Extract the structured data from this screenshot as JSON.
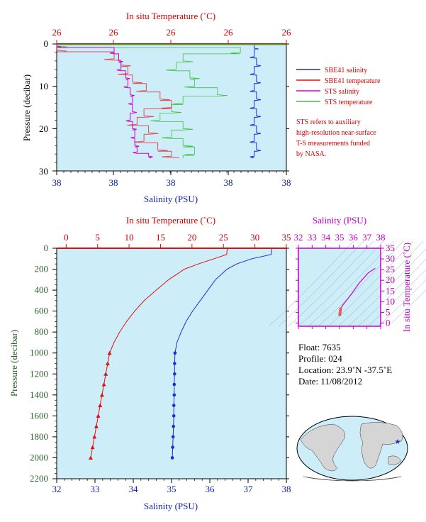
{
  "top_panel": {
    "title_top": "In situ Temperature (˚C)",
    "top_ticks": [
      "26",
      "26",
      "26",
      "26",
      "26",
      "26"
    ],
    "left_label": "Pressure (decibar)",
    "left_ticks": [
      "0",
      "10",
      "20",
      "30"
    ],
    "bottom_label": "Salinity (PSU)",
    "bottom_ticks": [
      "38",
      "38",
      "38",
      "38",
      "38"
    ]
  },
  "legend": {
    "items": [
      {
        "label": "SBE41 salinity",
        "color": "#1a2fd0"
      },
      {
        "label": "SBE41 temperature",
        "color": "#e01010"
      },
      {
        "label": "STS salinity",
        "color": "#d000d0"
      },
      {
        "label": "STS temperature",
        "color": "#3cc43c"
      }
    ],
    "note_lines": [
      "STS refers to auxiliary",
      "high-resolution near-surface",
      "T-S measurements funded",
      "by NASA."
    ]
  },
  "main_panel": {
    "title_top": "In situ Temperature (˚C)",
    "top_ticks": [
      "0",
      "5",
      "10",
      "15",
      "20",
      "25",
      "30",
      "35"
    ],
    "left_label": "Pressure (decibar)",
    "left_ticks": [
      "0",
      "200",
      "400",
      "600",
      "800",
      "1000",
      "1200",
      "1400",
      "1600",
      "1800",
      "2000",
      "2200"
    ],
    "bottom_label": "Salinity (PSU)",
    "bottom_ticks": [
      "32",
      "33",
      "34",
      "35",
      "36",
      "37",
      "38"
    ]
  },
  "ts_panel": {
    "title_top": "Salinity (PSU)",
    "top_ticks": [
      "32",
      "33",
      "34",
      "35",
      "36",
      "37",
      "38"
    ],
    "right_label": "In situ Temperature (˚C)",
    "right_ticks": [
      "0",
      "5",
      "10",
      "15",
      "20",
      "25",
      "30",
      "35"
    ]
  },
  "info": {
    "float": "Float:  7635",
    "profile": "Profile:  024",
    "location": "Location:  23.9˚N  -37.5˚E",
    "date": "Date:  11/08/2012"
  },
  "colors": {
    "plot_bg": "#cdeef8",
    "salinity": "#1a2fd0",
    "temperature": "#e01010",
    "sts_salinity": "#d000d0",
    "sts_temperature": "#3cc43c",
    "axis_red": "#d40000",
    "axis_blue": "#0a1fa8",
    "axis_green": "#2e5e2e",
    "axis_magenta": "#c400c4"
  },
  "chart_data": [
    {
      "type": "line",
      "panel": "main",
      "xlabel_top": "In situ Temperature (˚C)",
      "xlabel_bottom": "Salinity (PSU)",
      "ylabel": "Pressure (decibar)",
      "ylim": [
        2200,
        0
      ],
      "x_top_lim": [
        -1.5,
        35
      ],
      "x_bottom_lim": [
        32,
        38
      ],
      "series": [
        {
          "name": "SBE41 temperature",
          "axis": "top",
          "pressure": [
            5,
            60,
            100,
            150,
            200,
            300,
            400,
            500,
            600,
            700,
            800,
            900,
            1000,
            1100,
            1200,
            1300,
            1400,
            1500,
            1600,
            1700,
            1800,
            1900,
            2000
          ],
          "values": [
            25.6,
            25.5,
            23.5,
            21.0,
            18.8,
            16.3,
            14.3,
            12.4,
            10.9,
            9.6,
            8.5,
            7.6,
            6.9,
            6.6,
            6.3,
            6.0,
            5.7,
            5.4,
            5.1,
            4.8,
            4.5,
            4.2,
            3.9
          ]
        },
        {
          "name": "SBE41 salinity",
          "axis": "bottom",
          "pressure": [
            5,
            60,
            100,
            150,
            200,
            300,
            400,
            500,
            600,
            700,
            800,
            900,
            1000,
            1100,
            1200,
            1300,
            1400,
            1500,
            1600,
            1700,
            1800,
            1900,
            2000
          ],
          "values": [
            37.62,
            37.6,
            37.1,
            36.7,
            36.45,
            36.15,
            35.95,
            35.75,
            35.55,
            35.38,
            35.25,
            35.14,
            35.09,
            35.08,
            35.08,
            35.07,
            35.07,
            35.06,
            35.06,
            35.05,
            35.04,
            35.03,
            35.02
          ]
        }
      ]
    },
    {
      "type": "line",
      "panel": "near-surface",
      "xlabel_top": "In situ Temperature (˚C)",
      "xlabel_bottom": "Salinity (PSU)",
      "ylabel": "Pressure (decibar)",
      "ylim": [
        30,
        0
      ],
      "series": [
        {
          "name": "SBE41 salinity",
          "pressure": [
            0,
            2,
            4,
            6,
            8,
            10,
            12,
            14,
            16,
            18,
            20,
            22,
            24,
            26,
            27
          ],
          "values": [
            0.86,
            0.86,
            0.87,
            0.86,
            0.87,
            0.86,
            0.87,
            0.86,
            0.87,
            0.86,
            0.87,
            0.86,
            0.87,
            0.86,
            0.85
          ]
        },
        {
          "name": "SBE41 temperature",
          "pressure": [
            0,
            3,
            4,
            6,
            8,
            10,
            12,
            14,
            16,
            18,
            20,
            22,
            24,
            26,
            27
          ],
          "values": [
            0.0,
            0.25,
            0.28,
            0.31,
            0.33,
            0.39,
            0.45,
            0.5,
            0.38,
            0.35,
            0.4,
            0.38,
            0.44,
            0.5,
            0.53
          ]
        },
        {
          "name": "STS salinity",
          "pressure": [
            0,
            1,
            3,
            5,
            7,
            9,
            11,
            13,
            15,
            17,
            19,
            21,
            23,
            25,
            26,
            27
          ],
          "values": [
            0.0,
            0.25,
            0.27,
            0.28,
            0.3,
            0.31,
            0.32,
            0.33,
            0.33,
            0.32,
            0.33,
            0.34,
            0.34,
            0.35,
            0.4,
            0.41
          ]
        },
        {
          "name": "STS temperature",
          "pressure": [
            0,
            1,
            3,
            5,
            7,
            9,
            11,
            13,
            15,
            17,
            19,
            21,
            23,
            25,
            27
          ],
          "values": [
            0.0,
            0.8,
            0.55,
            0.52,
            0.58,
            0.6,
            0.7,
            0.55,
            0.5,
            0.45,
            0.55,
            0.5,
            0.55,
            0.6,
            0.55
          ]
        }
      ]
    },
    {
      "type": "line",
      "panel": "T-S diagram",
      "xlabel": "Salinity (PSU)",
      "ylabel": "In situ Temperature (˚C)",
      "xlim": [
        32,
        38
      ],
      "ylim": [
        -1.5,
        35
      ],
      "series": [
        {
          "name": "T-S profile",
          "x": [
            35.02,
            35.06,
            35.08,
            35.25,
            35.55,
            35.95,
            36.45,
            37.1,
            37.6
          ],
          "y": [
            3.9,
            5.4,
            6.6,
            8.5,
            10.9,
            14.3,
            18.8,
            23.5,
            25.6
          ]
        }
      ]
    }
  ]
}
